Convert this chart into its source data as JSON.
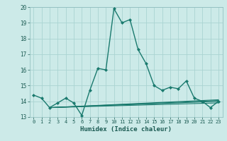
{
  "title": "",
  "xlabel": "Humidex (Indice chaleur)",
  "bg_color": "#cceae8",
  "grid_color": "#aad4d2",
  "line_color": "#1a7a6e",
  "marker_color": "#1a7a6e",
  "xlim": [
    -0.5,
    23.5
  ],
  "ylim": [
    13,
    20
  ],
  "yticks": [
    13,
    14,
    15,
    16,
    17,
    18,
    19,
    20
  ],
  "xticks": [
    0,
    1,
    2,
    3,
    4,
    5,
    6,
    7,
    8,
    9,
    10,
    11,
    12,
    13,
    14,
    15,
    16,
    17,
    18,
    19,
    20,
    21,
    22,
    23
  ],
  "main_series": {
    "x": [
      0,
      1,
      2,
      3,
      4,
      5,
      6,
      7,
      8,
      9,
      10,
      11,
      12,
      13,
      14,
      15,
      16,
      17,
      18,
      19,
      20,
      21,
      22,
      23
    ],
    "y": [
      14.4,
      14.2,
      13.6,
      13.9,
      14.2,
      13.9,
      13.1,
      14.7,
      16.1,
      16.0,
      19.9,
      19.0,
      19.2,
      17.3,
      16.4,
      15.0,
      14.7,
      14.9,
      14.8,
      15.3,
      14.2,
      14.0,
      13.6,
      14.0
    ]
  },
  "flat_lines": [
    {
      "x": [
        2,
        23
      ],
      "y": [
        13.6,
        13.9
      ]
    },
    {
      "x": [
        2,
        23
      ],
      "y": [
        13.6,
        14.0
      ]
    },
    {
      "x": [
        2,
        23
      ],
      "y": [
        13.6,
        14.05
      ]
    },
    {
      "x": [
        2,
        23
      ],
      "y": [
        13.6,
        14.1
      ]
    }
  ]
}
